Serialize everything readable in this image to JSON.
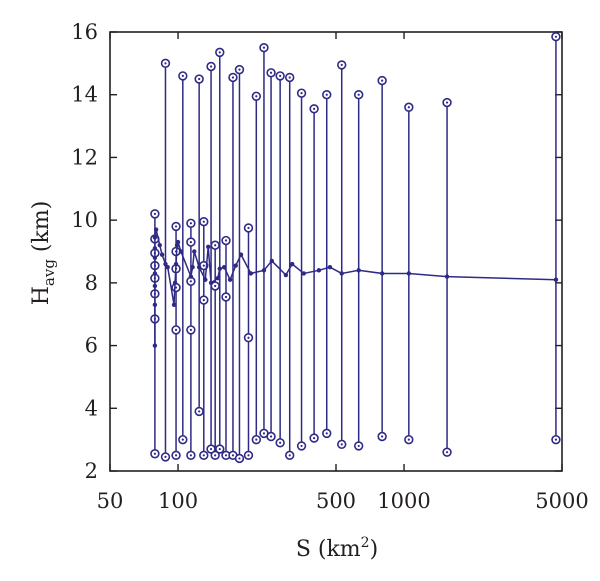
{
  "chart_data": {
    "type": "line",
    "xscale": "log",
    "xlim": [
      50,
      5000
    ],
    "ylim": [
      2,
      16
    ],
    "xticks": [
      50,
      100,
      500,
      1000,
      5000
    ],
    "yticks": [
      2,
      4,
      6,
      8,
      10,
      12,
      14,
      16
    ],
    "xlabel": {
      "main": "S (km",
      "sup": "2",
      "close": ")"
    },
    "ylabel": {
      "main": "H",
      "sub": "avg",
      "rest": " (km)"
    },
    "grid": false,
    "color": "#2e2a85",
    "series": [
      {
        "role": "average",
        "points": [
          [
            79,
            6.0
          ],
          [
            79,
            7.3
          ],
          [
            79,
            7.9
          ],
          [
            79,
            8.3
          ],
          [
            79,
            8.8
          ],
          [
            79,
            9.1
          ],
          [
            79,
            9.45
          ],
          [
            80,
            9.7
          ],
          [
            83,
            9.2
          ],
          [
            85,
            8.9
          ],
          [
            88,
            8.6
          ],
          [
            90,
            8.5
          ],
          [
            96,
            7.3
          ],
          [
            97,
            8.0
          ],
          [
            98,
            8.6
          ],
          [
            99,
            9.2
          ],
          [
            100,
            9.3
          ],
          [
            103,
            9.0
          ],
          [
            114,
            8.2
          ],
          [
            116,
            8.5
          ],
          [
            118,
            9.0
          ],
          [
            124,
            8.5
          ],
          [
            132,
            8.1
          ],
          [
            136,
            9.15
          ],
          [
            140,
            8.0
          ],
          [
            150,
            8.15
          ],
          [
            153,
            8.45
          ],
          [
            160,
            8.5
          ],
          [
            170,
            8.1
          ],
          [
            180,
            8.55
          ],
          [
            190,
            8.9
          ],
          [
            210,
            8.3
          ],
          [
            240,
            8.4
          ],
          [
            260,
            8.7
          ],
          [
            300,
            8.25
          ],
          [
            320,
            8.6
          ],
          [
            360,
            8.3
          ],
          [
            420,
            8.4
          ],
          [
            470,
            8.5
          ],
          [
            530,
            8.3
          ],
          [
            630,
            8.4
          ],
          [
            800,
            8.3
          ],
          [
            1050,
            8.3
          ],
          [
            1550,
            8.2
          ],
          [
            4700,
            8.1
          ]
        ]
      },
      {
        "role": "range",
        "items": [
          {
            "s": 79,
            "max": 10.2,
            "min": 2.55,
            "extra": [
              9.4,
              8.95,
              8.55,
              8.15,
              7.65,
              6.85
            ]
          },
          {
            "s": 88,
            "max": 15.0,
            "min": 2.45,
            "extra": []
          },
          {
            "s": 98,
            "max": 9.8,
            "min": 2.5,
            "extra": [
              9.0,
              8.45,
              7.85,
              6.5
            ]
          },
          {
            "s": 105,
            "max": 14.6,
            "min": 3.0,
            "extra": []
          },
          {
            "s": 114,
            "max": 9.9,
            "min": 2.5,
            "extra": [
              9.3,
              8.05,
              6.5
            ]
          },
          {
            "s": 124,
            "max": 14.5,
            "min": 3.9,
            "extra": []
          },
          {
            "s": 130,
            "max": 9.95,
            "min": 2.5,
            "extra": [
              8.55,
              7.45
            ]
          },
          {
            "s": 140,
            "max": 14.9,
            "min": 2.7,
            "extra": []
          },
          {
            "s": 146,
            "max": 9.2,
            "min": 2.5,
            "extra": [
              7.9
            ]
          },
          {
            "s": 153,
            "max": 15.35,
            "min": 2.7,
            "extra": []
          },
          {
            "s": 163,
            "max": 9.35,
            "min": 2.5,
            "extra": [
              7.55
            ]
          },
          {
            "s": 175,
            "max": 14.55,
            "min": 2.5,
            "extra": []
          },
          {
            "s": 187,
            "max": 14.8,
            "min": 2.4,
            "extra": []
          },
          {
            "s": 205,
            "max": 9.75,
            "min": 2.5,
            "extra": [
              6.25
            ]
          },
          {
            "s": 222,
            "max": 13.95,
            "min": 3.0,
            "extra": []
          },
          {
            "s": 240,
            "max": 15.5,
            "min": 3.2,
            "extra": []
          },
          {
            "s": 258,
            "max": 14.7,
            "min": 3.1,
            "extra": []
          },
          {
            "s": 283,
            "max": 14.6,
            "min": 2.9,
            "extra": []
          },
          {
            "s": 312,
            "max": 14.55,
            "min": 2.5,
            "extra": []
          },
          {
            "s": 352,
            "max": 14.05,
            "min": 2.8,
            "extra": []
          },
          {
            "s": 400,
            "max": 13.55,
            "min": 3.05,
            "extra": []
          },
          {
            "s": 455,
            "max": 14.0,
            "min": 3.2,
            "extra": []
          },
          {
            "s": 530,
            "max": 14.95,
            "min": 2.85,
            "extra": []
          },
          {
            "s": 630,
            "max": 14.0,
            "min": 2.8,
            "extra": []
          },
          {
            "s": 800,
            "max": 14.45,
            "min": 3.1,
            "extra": []
          },
          {
            "s": 1050,
            "max": 13.6,
            "min": 3.0,
            "extra": []
          },
          {
            "s": 1550,
            "max": 13.75,
            "min": 2.6,
            "extra": []
          },
          {
            "s": 4700,
            "max": 15.85,
            "min": 3.0,
            "extra": []
          }
        ]
      }
    ]
  }
}
